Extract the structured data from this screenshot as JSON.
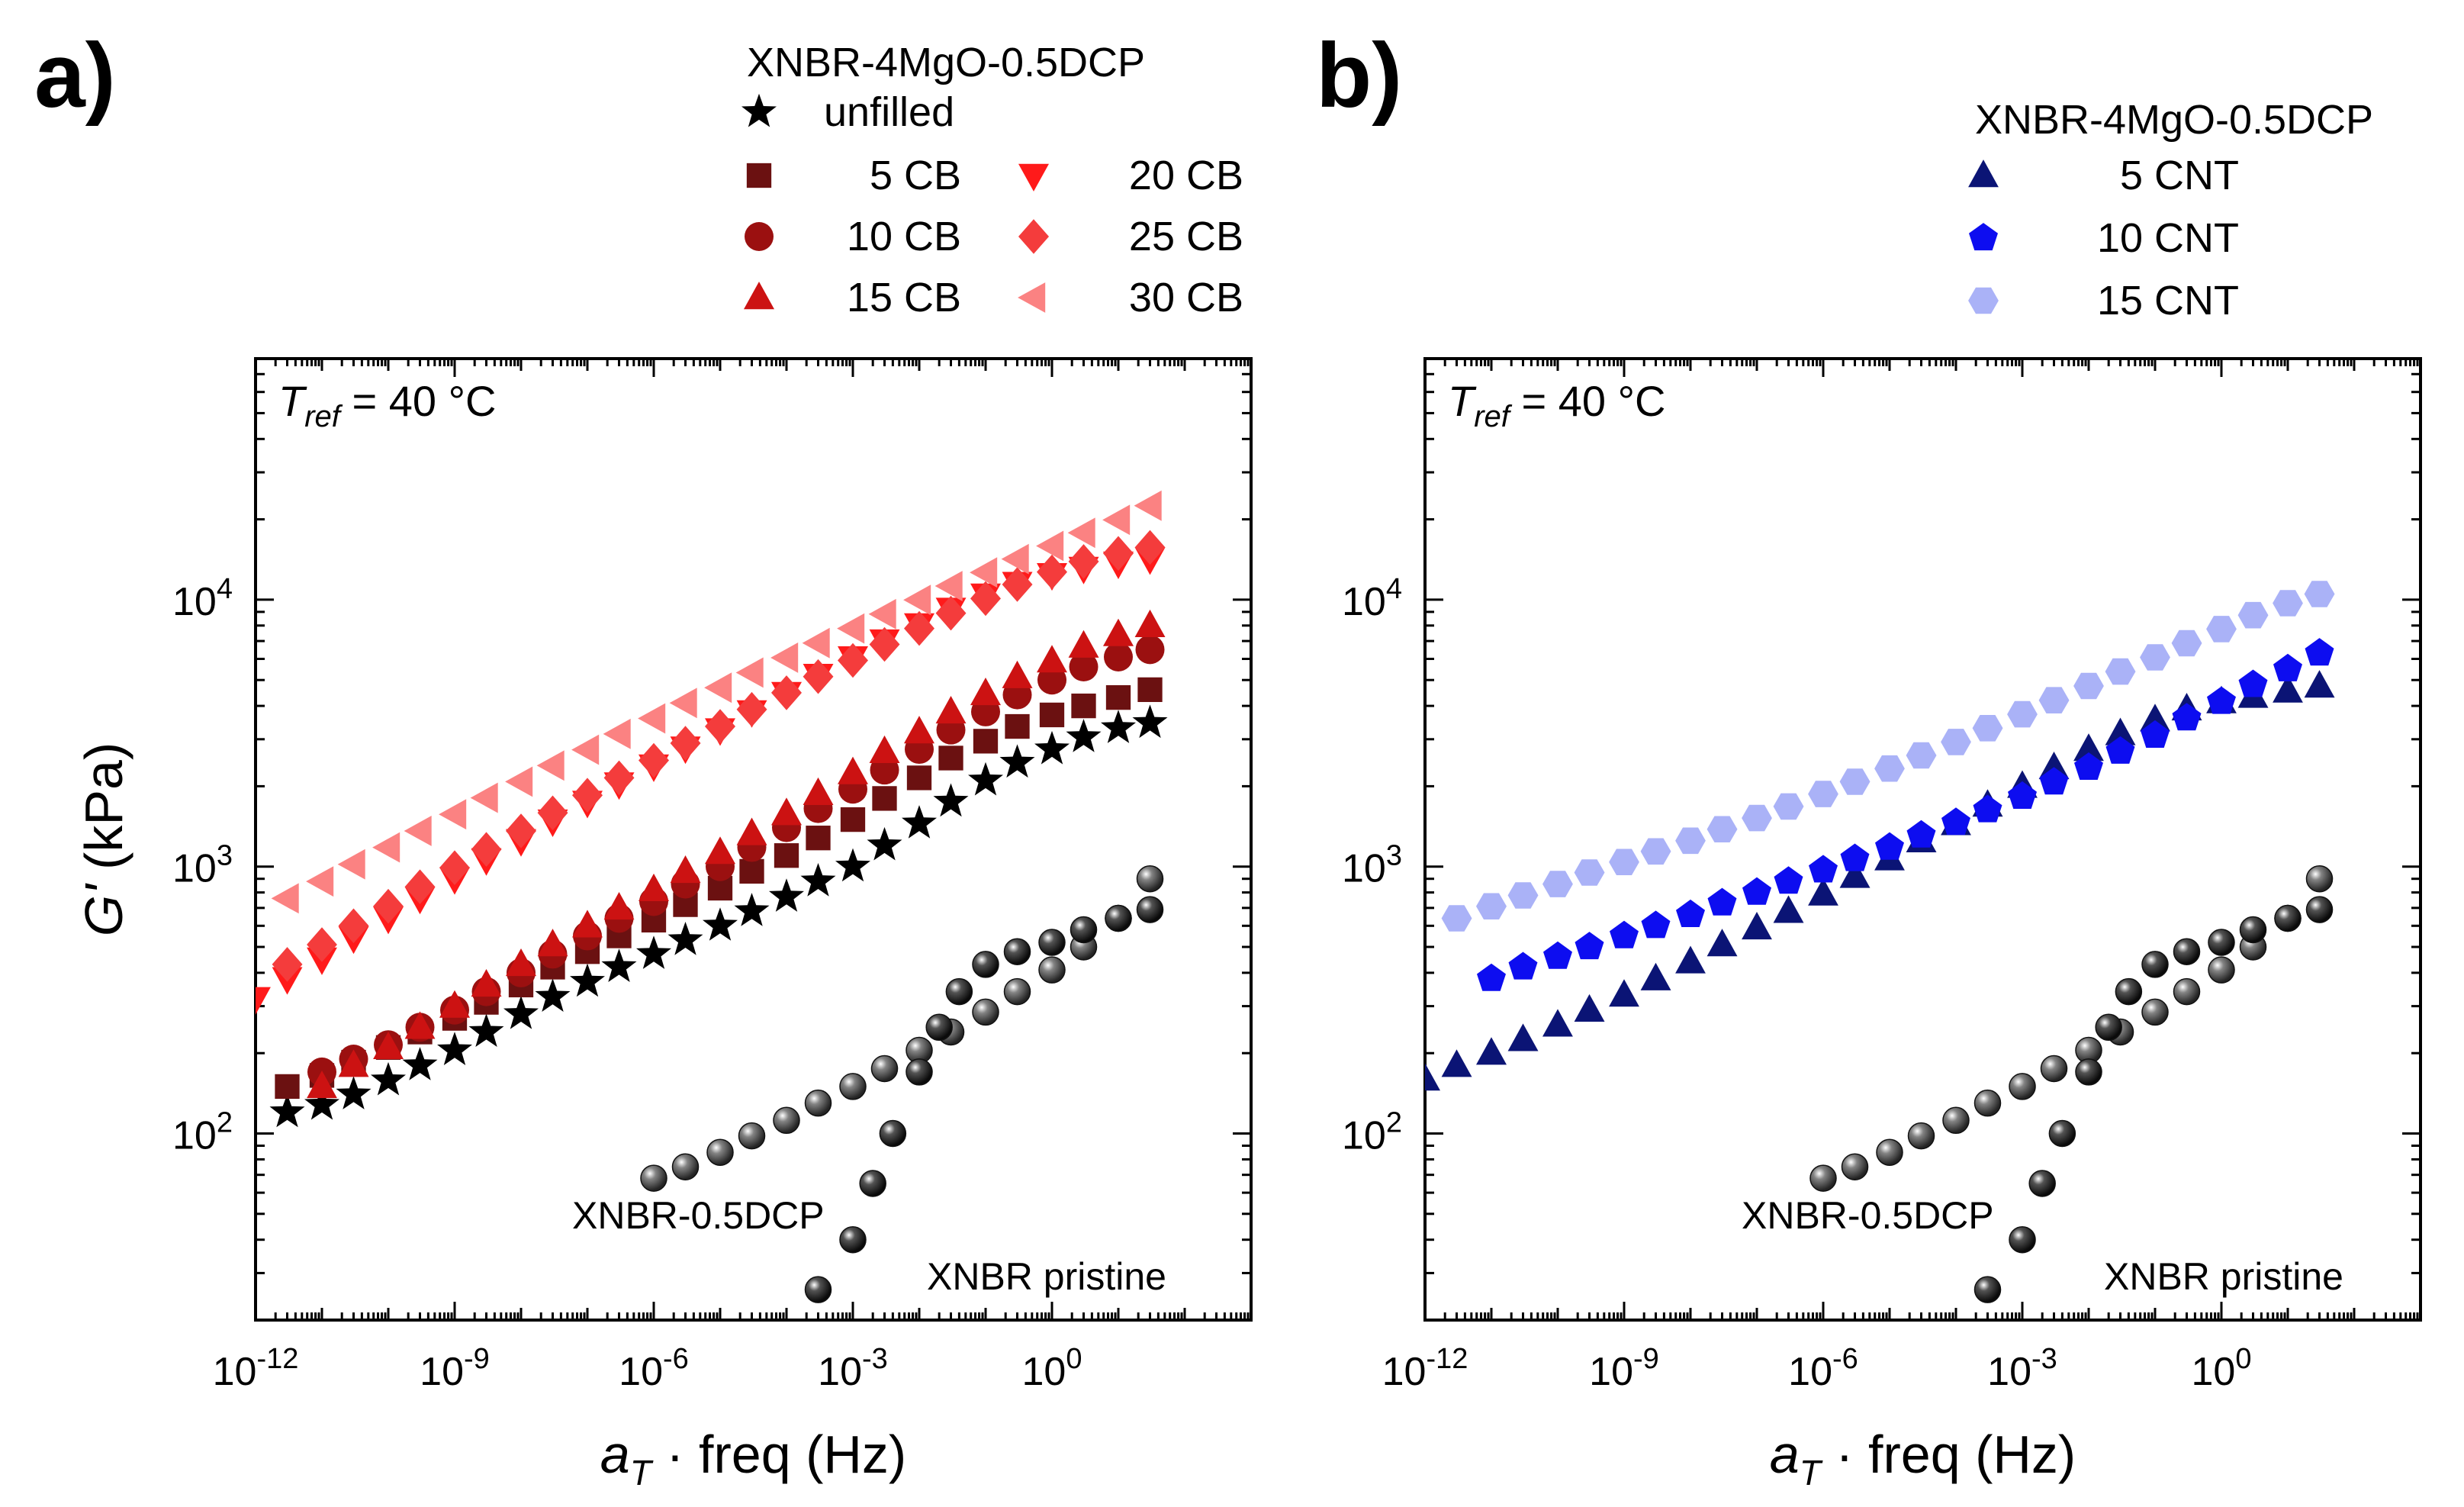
{
  "figure": {
    "chart_data": [
      {
        "type": "scatter",
        "panel_label": "a)",
        "xscale": "log",
        "yscale": "log",
        "xlim": [
          1e-12,
          1000.0
        ],
        "ylim": [
          20,
          80000
        ],
        "xlabel": "a_T · freq (Hz)",
        "xlabel_parts": {
          "main": "a",
          "sub": "T",
          "rest": " · freq (Hz)"
        },
        "ylabel": "G' (kPa)",
        "ylabel_parts": {
          "main": "G'",
          "rest": " (kPa)"
        },
        "xticks": [
          {
            "base": "10",
            "exp": "-12",
            "value": 1e-12
          },
          {
            "base": "10",
            "exp": "-9",
            "value": 1e-09
          },
          {
            "base": "10",
            "exp": "-6",
            "value": 1e-06
          },
          {
            "base": "10",
            "exp": "-3",
            "value": 0.001
          },
          {
            "base": "10",
            "exp": "0",
            "value": 1
          }
        ],
        "yticks": [
          {
            "base": "10",
            "exp": "2",
            "value": 100
          },
          {
            "base": "10",
            "exp": "3",
            "value": 1000
          },
          {
            "base": "10",
            "exp": "4",
            "value": 10000
          }
        ],
        "annotation_tref": {
          "T": "T",
          "sub": "ref",
          "rest": " = 40 °C"
        },
        "legend": {
          "title": "XNBR-4MgO-0.5DCP",
          "entries": [
            "unfilled",
            "5 CB",
            "10 CB",
            "15 CB",
            "20 CB",
            "25 CB",
            "30 CB"
          ]
        },
        "series": [
          {
            "name": "unfilled",
            "marker": "star",
            "color": "#000000",
            "x": [
              3e-12,
              1e-11,
              3e-11,
              1e-10,
              3e-10,
              1e-09,
              3e-09,
              1e-08,
              3e-08,
              1e-07,
              3e-07,
              1e-06,
              3e-06,
              1e-05,
              3e-05,
              0.0001,
              0.0003,
              0.001,
              0.003,
              0.01,
              0.03,
              0.1,
              0.3,
              1,
              3,
              10,
              30
            ],
            "y": [
              120,
              128,
              140,
              158,
              180,
              205,
              240,
              280,
              325,
              370,
              420,
              470,
              530,
              600,
              680,
              770,
              880,
              1000,
              1200,
              1450,
              1750,
              2100,
              2450,
              2750,
              3050,
              3300,
              3450
            ]
          },
          {
            "name": "5 CB",
            "marker": "square",
            "color": "#6b1111",
            "x": [
              3e-12,
              1e-11,
              3e-11,
              1e-10,
              3e-10,
              1e-09,
              3e-09,
              1e-08,
              3e-08,
              1e-07,
              3e-07,
              1e-06,
              3e-06,
              1e-05,
              3e-05,
              0.0001,
              0.0003,
              0.001,
              0.003,
              0.01,
              0.03,
              0.1,
              0.3,
              1,
              3,
              10,
              30
            ],
            "y": [
              150,
              165,
              185,
              210,
              240,
              270,
              310,
              360,
              420,
              480,
              550,
              630,
              720,
              830,
              960,
              1100,
              1280,
              1500,
              1800,
              2150,
              2550,
              2950,
              3350,
              3700,
              4000,
              4300,
              4600
            ]
          },
          {
            "name": "10 CB",
            "marker": "circle",
            "color": "#9b1010",
            "x": [
              1e-11,
              3e-11,
              1e-10,
              3e-10,
              1e-09,
              3e-09,
              1e-08,
              3e-08,
              1e-07,
              3e-07,
              1e-06,
              3e-06,
              1e-05,
              3e-05,
              0.0001,
              0.0003,
              0.001,
              0.003,
              0.01,
              0.03,
              0.1,
              0.3,
              1,
              3,
              10,
              30
            ],
            "y": [
              170,
              190,
              215,
              250,
              290,
              340,
              400,
              470,
              550,
              640,
              740,
              860,
              1000,
              1180,
              1400,
              1650,
              1950,
              2300,
              2750,
              3250,
              3800,
              4400,
              5000,
              5600,
              6100,
              6500
            ]
          },
          {
            "name": "15 CB",
            "marker": "triangle-up",
            "color": "#cc1212",
            "x": [
              1e-11,
              3e-11,
              1e-10,
              3e-10,
              1e-09,
              3e-09,
              1e-08,
              3e-08,
              1e-07,
              3e-07,
              1e-06,
              3e-06,
              1e-05,
              3e-05,
              0.0001,
              0.0003,
              0.001,
              0.003,
              0.01,
              0.03,
              0.1,
              0.3,
              1,
              3,
              10,
              30
            ],
            "y": [
              150,
              180,
              210,
              250,
              300,
              360,
              430,
              510,
              600,
              700,
              820,
              960,
              1130,
              1330,
              1580,
              1880,
              2250,
              2700,
              3200,
              3800,
              4450,
              5150,
              5900,
              6700,
              7400,
              8000
            ]
          },
          {
            "name": "20 CB",
            "marker": "triangle-down",
            "color": "#ff1a1a",
            "x": [
              1e-12,
              3e-12,
              1e-11,
              3e-11,
              1e-10,
              3e-10,
              1e-09,
              3e-09,
              1e-08,
              3e-08,
              1e-07,
              3e-07,
              1e-06,
              3e-06,
              1e-05,
              3e-05,
              0.0001,
              0.0003,
              0.001,
              0.003,
              0.01,
              0.03,
              0.1,
              0.3,
              1,
              3,
              10,
              30
            ],
            "y": [
              320,
              380,
              450,
              540,
              640,
              760,
              900,
              1060,
              1250,
              1480,
              1740,
              2040,
              2380,
              2780,
              3250,
              3800,
              4450,
              5200,
              6050,
              7000,
              8050,
              9200,
              10400,
              11500,
              12400,
              13100,
              13700,
              14200
            ]
          },
          {
            "name": "25 CB",
            "marker": "diamond",
            "color": "#f43c3c",
            "x": [
              3e-12,
              1e-11,
              3e-11,
              1e-10,
              3e-10,
              1e-09,
              3e-09,
              1e-08,
              3e-08,
              1e-07,
              3e-07,
              1e-06,
              3e-06,
              1e-05,
              3e-05,
              0.0001,
              0.0003,
              0.001,
              0.003,
              0.01,
              0.03,
              0.1,
              0.3,
              1,
              3,
              10,
              30
            ],
            "y": [
              430,
              510,
              600,
              710,
              840,
              990,
              1160,
              1360,
              1590,
              1850,
              2150,
              2500,
              2900,
              3350,
              3880,
              4480,
              5150,
              5920,
              6800,
              7800,
              8900,
              10100,
              11400,
              12700,
              13900,
              14900,
              15700
            ]
          },
          {
            "name": "30 CB",
            "marker": "triangle-left",
            "color": "#fb8282",
            "x": [
              3e-12,
              1e-11,
              3e-11,
              1e-10,
              3e-10,
              1e-09,
              3e-09,
              1e-08,
              3e-08,
              1e-07,
              3e-07,
              1e-06,
              3e-06,
              1e-05,
              3e-05,
              0.0001,
              0.0003,
              0.001,
              0.003,
              0.01,
              0.03,
              0.1,
              0.3,
              1,
              3,
              10,
              30
            ],
            "y": [
              760,
              880,
              1020,
              1180,
              1360,
              1570,
              1810,
              2080,
              2390,
              2740,
              3140,
              3590,
              4100,
              4680,
              5330,
              6060,
              6880,
              7800,
              8830,
              9980,
              11250,
              12650,
              14200,
              15900,
              17800,
              19900,
              22500
            ]
          },
          {
            "name": "XNBR-0.5DCP",
            "marker": "sphere",
            "color": "#5a5a5a",
            "x": [
              1e-06,
              3e-06,
              1e-05,
              3e-05,
              0.0001,
              0.0003,
              0.001,
              0.003,
              0.01,
              0.03,
              0.1,
              0.3,
              1,
              3,
              10,
              30
            ],
            "y": [
              68,
              75,
              85,
              98,
              112,
              130,
              150,
              175,
              205,
              240,
              285,
              340,
              410,
              500,
              640,
              900
            ]
          },
          {
            "name": "XNBR pristine",
            "marker": "sphere",
            "color": "#1a1a1a",
            "x": [
              0.0003,
              0.001,
              0.002,
              0.004,
              0.01,
              0.02,
              0.04,
              0.1,
              0.3,
              1,
              3,
              10,
              30
            ],
            "y": [
              26,
              40,
              65,
              100,
              170,
              250,
              340,
              430,
              480,
              520,
              580,
              640,
              690
            ]
          }
        ],
        "annotations": [
          "XNBR-0.5DCP",
          "XNBR pristine"
        ]
      },
      {
        "type": "scatter",
        "panel_label": "b)",
        "xscale": "log",
        "yscale": "log",
        "xlim": [
          1e-12,
          1000.0
        ],
        "ylim": [
          20,
          80000
        ],
        "xlabel": "a_T · freq (Hz)",
        "xlabel_parts": {
          "main": "a",
          "sub": "T",
          "rest": " · freq (Hz)"
        },
        "xticks": [
          {
            "base": "10",
            "exp": "-12",
            "value": 1e-12
          },
          {
            "base": "10",
            "exp": "-9",
            "value": 1e-09
          },
          {
            "base": "10",
            "exp": "-6",
            "value": 1e-06
          },
          {
            "base": "10",
            "exp": "-3",
            "value": 0.001
          },
          {
            "base": "10",
            "exp": "0",
            "value": 1
          }
        ],
        "yticks": [
          {
            "base": "10",
            "exp": "2",
            "value": 100
          },
          {
            "base": "10",
            "exp": "3",
            "value": 1000
          },
          {
            "base": "10",
            "exp": "4",
            "value": 10000
          }
        ],
        "annotation_tref": {
          "T": "T",
          "sub": "ref",
          "rest": " = 40 °C"
        },
        "legend": {
          "title": "XNBR-4MgO-0.5DCP",
          "entries": [
            "5 CNT",
            "10 CNT",
            "15 CNT"
          ]
        },
        "series": [
          {
            "name": "5 CNT",
            "marker": "triangle-up",
            "color": "#0b1475",
            "x": [
              1e-12,
              3e-12,
              1e-11,
              3e-11,
              1e-10,
              3e-10,
              1e-09,
              3e-09,
              1e-08,
              3e-08,
              1e-07,
              3e-07,
              1e-06,
              3e-06,
              1e-05,
              3e-05,
              0.0001,
              0.0003,
              0.001,
              0.003,
              0.01,
              0.03,
              0.1,
              0.3,
              1,
              3,
              10,
              30
            ],
            "y": [
              160,
              180,
              200,
              225,
              255,
              290,
              330,
              380,
              440,
              510,
              590,
              680,
              790,
              920,
              1070,
              1250,
              1450,
              1700,
              2000,
              2350,
              2750,
              3150,
              3550,
              3900,
              4150,
              4350,
              4550,
              4750
            ]
          },
          {
            "name": "10 CNT",
            "marker": "pentagon",
            "color": "#0d0df0",
            "x": [
              1e-11,
              3e-11,
              1e-10,
              3e-10,
              1e-09,
              3e-09,
              1e-08,
              3e-08,
              1e-07,
              3e-07,
              1e-06,
              3e-06,
              1e-05,
              3e-05,
              0.0001,
              0.0003,
              0.001,
              0.003,
              0.01,
              0.03,
              0.1,
              0.3,
              1,
              3,
              10,
              30
            ],
            "y": [
              380,
              420,
              460,
              500,
              550,
              600,
              660,
              730,
              800,
              880,
              970,
              1070,
              1180,
              1310,
              1460,
              1630,
              1830,
              2070,
              2350,
              2700,
              3100,
              3600,
              4150,
              4800,
              5500,
              6300
            ]
          },
          {
            "name": "15 CNT",
            "marker": "hexagon",
            "color": "#aab2f7",
            "x": [
              3e-12,
              1e-11,
              3e-11,
              1e-10,
              3e-10,
              1e-09,
              3e-09,
              1e-08,
              3e-08,
              1e-07,
              3e-07,
              1e-06,
              3e-06,
              1e-05,
              3e-05,
              0.0001,
              0.0003,
              0.001,
              0.003,
              0.01,
              0.03,
              0.1,
              0.3,
              1,
              3,
              10,
              30
            ],
            "y": [
              640,
              710,
              780,
              860,
              950,
              1040,
              1140,
              1250,
              1380,
              1520,
              1680,
              1870,
              2080,
              2330,
              2610,
              2930,
              3300,
              3720,
              4200,
              4750,
              5380,
              6080,
              6870,
              7760,
              8750,
              9700,
              10500
            ]
          },
          {
            "name": "XNBR-0.5DCP",
            "marker": "sphere",
            "color": "#5a5a5a",
            "x": [
              1e-06,
              3e-06,
              1e-05,
              3e-05,
              0.0001,
              0.0003,
              0.001,
              0.003,
              0.01,
              0.03,
              0.1,
              0.3,
              1,
              3,
              10,
              30
            ],
            "y": [
              68,
              75,
              85,
              98,
              112,
              130,
              150,
              175,
              205,
              240,
              285,
              340,
              410,
              500,
              640,
              900
            ]
          },
          {
            "name": "XNBR pristine",
            "marker": "sphere",
            "color": "#1a1a1a",
            "x": [
              0.0003,
              0.001,
              0.002,
              0.004,
              0.01,
              0.02,
              0.04,
              0.1,
              0.3,
              1,
              3,
              10,
              30
            ],
            "y": [
              26,
              40,
              65,
              100,
              170,
              250,
              340,
              430,
              480,
              520,
              580,
              640,
              690
            ]
          }
        ],
        "annotations": [
          "XNBR-0.5DCP",
          "XNBR pristine"
        ]
      }
    ]
  }
}
